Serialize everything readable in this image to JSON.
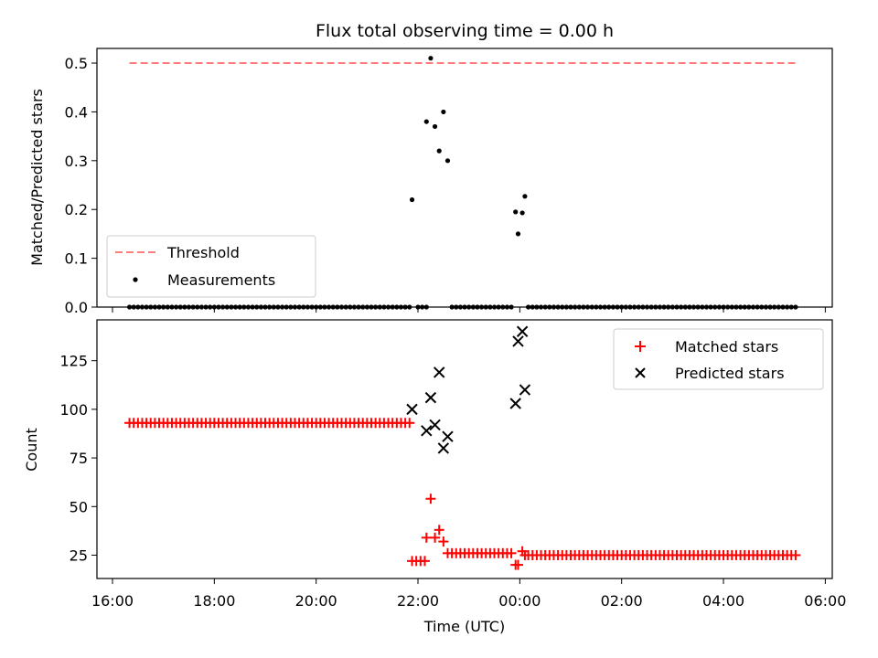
{
  "chart_data": [
    {
      "type": "scatter",
      "title": "Flux total observing time = 0.00 h",
      "xlabel": "",
      "ylabel": "Matched/Predicted stars",
      "ylim": [
        0,
        0.53
      ],
      "yticks": [
        "0.0",
        "0.1",
        "0.2",
        "0.3",
        "0.4",
        "0.5"
      ],
      "ytick_values": [
        0,
        0.1,
        0.2,
        0.3,
        0.4,
        0.5
      ],
      "legend": {
        "placement": "lower-left",
        "entries": [
          "Threshold",
          "Measurements"
        ]
      },
      "threshold": {
        "name": "Threshold",
        "value": 0.5,
        "x_start": "16:20",
        "x_end": "05:25",
        "color": "#ff7f7f",
        "style": "dashed"
      },
      "series": [
        {
          "name": "Measurements",
          "color": "#000000",
          "marker": "dot",
          "zero_runs": [
            {
              "start": "16:20",
              "end": "21:50",
              "step_min": 5
            },
            {
              "start": "22:00",
              "end": "22:10",
              "step_min": 5
            },
            {
              "start": "22:40",
              "end": "23:50",
              "step_min": 5
            },
            {
              "start": "00:10",
              "end": "05:25",
              "step_min": 5
            }
          ],
          "points": [
            {
              "x": "21:53",
              "y": 0.22
            },
            {
              "x": "22:10",
              "y": 0.38
            },
            {
              "x": "22:15",
              "y": 0.51
            },
            {
              "x": "22:20",
              "y": 0.37
            },
            {
              "x": "22:25",
              "y": 0.32
            },
            {
              "x": "22:30",
              "y": 0.4
            },
            {
              "x": "22:35",
              "y": 0.3
            },
            {
              "x": "23:55",
              "y": 0.195
            },
            {
              "x": "23:58",
              "y": 0.15
            },
            {
              "x": "00:03",
              "y": 0.193
            },
            {
              "x": "00:06",
              "y": 0.227
            }
          ]
        }
      ]
    },
    {
      "type": "scatter",
      "title": "",
      "xlabel": "Time (UTC)",
      "ylabel": "Count",
      "ylim": [
        13,
        146
      ],
      "yticks": [
        "25",
        "50",
        "75",
        "100",
        "125"
      ],
      "ytick_values": [
        25,
        50,
        75,
        100,
        125
      ],
      "xlim": [
        "16:00",
        "06:05"
      ],
      "xticks": [
        "16:00",
        "18:00",
        "20:00",
        "22:00",
        "00:00",
        "02:00",
        "04:00",
        "06:00"
      ],
      "legend": {
        "placement": "top-right",
        "entries": [
          "Matched stars",
          "Predicted stars"
        ]
      },
      "series": [
        {
          "name": "Matched stars",
          "color": "#ff0000",
          "marker": "plus",
          "runs": [
            {
              "start": "16:20",
              "end": "21:50",
              "step_min": 5,
              "y": 93
            },
            {
              "start": "22:40",
              "end": "23:50",
              "step_min": 5,
              "y": 26
            },
            {
              "start": "00:10",
              "end": "05:25",
              "step_min": 5,
              "y": 25
            }
          ],
          "points": [
            {
              "x": "21:53",
              "y": 22
            },
            {
              "x": "21:58",
              "y": 22
            },
            {
              "x": "22:03",
              "y": 22
            },
            {
              "x": "22:08",
              "y": 22
            },
            {
              "x": "22:10",
              "y": 34
            },
            {
              "x": "22:15",
              "y": 54
            },
            {
              "x": "22:20",
              "y": 34
            },
            {
              "x": "22:25",
              "y": 38
            },
            {
              "x": "22:30",
              "y": 32
            },
            {
              "x": "22:35",
              "y": 26
            },
            {
              "x": "23:55",
              "y": 20
            },
            {
              "x": "23:58",
              "y": 20
            },
            {
              "x": "00:03",
              "y": 27
            },
            {
              "x": "00:06",
              "y": 25
            }
          ]
        },
        {
          "name": "Predicted stars",
          "color": "#000000",
          "marker": "x",
          "points": [
            {
              "x": "21:53",
              "y": 100
            },
            {
              "x": "22:10",
              "y": 89
            },
            {
              "x": "22:15",
              "y": 106
            },
            {
              "x": "22:20",
              "y": 92
            },
            {
              "x": "22:25",
              "y": 119
            },
            {
              "x": "22:30",
              "y": 80
            },
            {
              "x": "22:35",
              "y": 86
            },
            {
              "x": "23:55",
              "y": 103
            },
            {
              "x": "23:58",
              "y": 135
            },
            {
              "x": "00:03",
              "y": 140
            },
            {
              "x": "00:06",
              "y": 110
            }
          ]
        }
      ]
    }
  ]
}
